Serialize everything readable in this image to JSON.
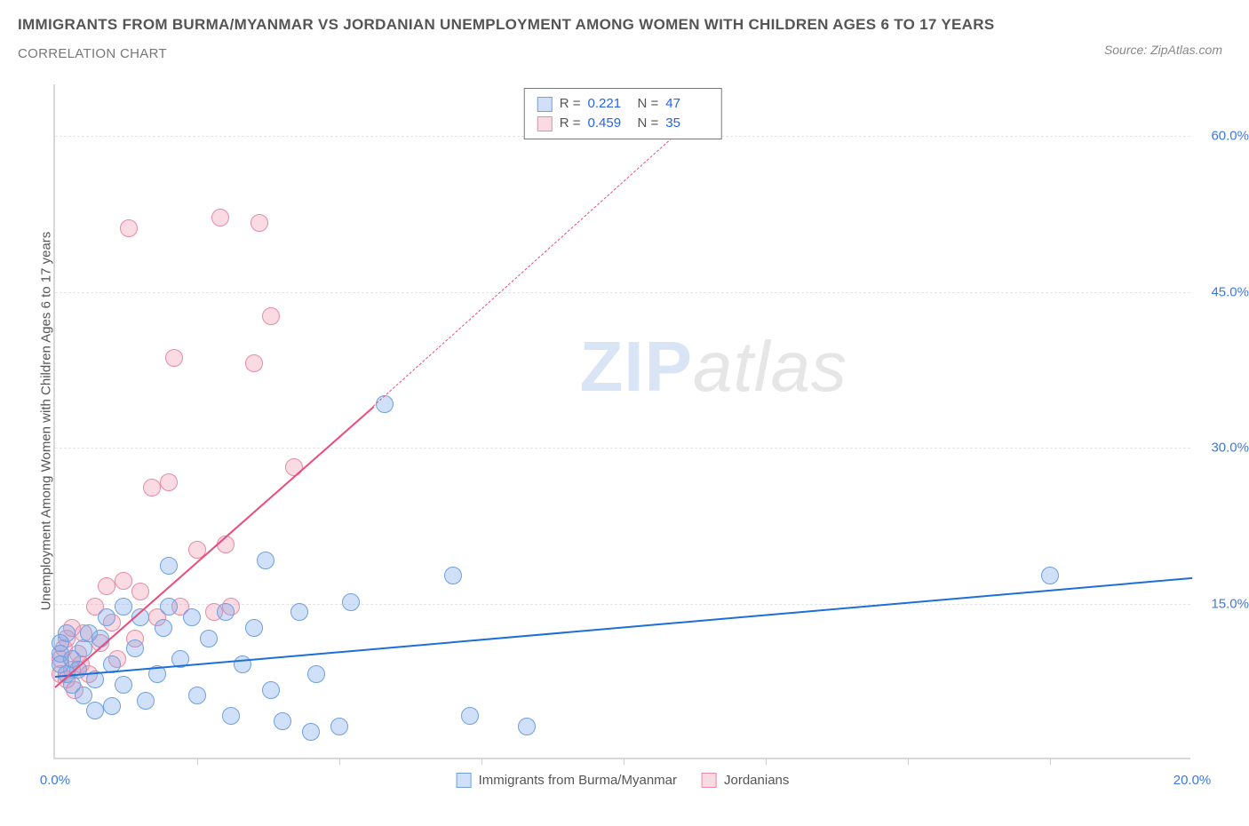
{
  "title_main": "IMMIGRANTS FROM BURMA/MYANMAR VS JORDANIAN UNEMPLOYMENT AMONG WOMEN WITH CHILDREN AGES 6 TO 17 YEARS",
  "title_sub": "CORRELATION CHART",
  "source_label": "Source: ZipAtlas.com",
  "y_axis_title": "Unemployment Among Women with Children Ages 6 to 17 years",
  "watermark_a": "ZIP",
  "watermark_b": "atlas",
  "chart": {
    "type": "scatter",
    "xlim": [
      0,
      20
    ],
    "ylim": [
      0,
      65
    ],
    "y_ticks": [
      15,
      30,
      45,
      60
    ],
    "y_tick_labels": [
      "15.0%",
      "30.0%",
      "45.0%",
      "60.0%"
    ],
    "x_major_ticks": [
      0,
      20
    ],
    "x_major_labels": [
      "0.0%",
      "20.0%"
    ],
    "x_minor_ticks": [
      2.5,
      5,
      7.5,
      10,
      12.5,
      15,
      17.5
    ],
    "tick_label_color": "#3b78e7",
    "grid_color": "#e5e5e5",
    "axis_color": "#d8d8d8",
    "background": "#ffffff",
    "series_a": {
      "label": "Immigrants from Burma/Myanmar",
      "fill": "rgba(120,165,235,0.35)",
      "stroke": "#6fa0e0",
      "trend_color": "#1d6fd8",
      "marker_radius": 10,
      "R": "0.221",
      "N": "47",
      "trend": {
        "x1": 0,
        "y1": 8.0,
        "x2": 20,
        "y2": 17.5
      },
      "points": [
        [
          0.1,
          10.0
        ],
        [
          0.1,
          9.0
        ],
        [
          0.1,
          11.0
        ],
        [
          0.2,
          8.0
        ],
        [
          0.2,
          12.0
        ],
        [
          0.3,
          7.0
        ],
        [
          0.3,
          9.5
        ],
        [
          0.4,
          8.5
        ],
        [
          0.5,
          6.0
        ],
        [
          0.5,
          10.5
        ],
        [
          0.6,
          12.0
        ],
        [
          0.7,
          4.5
        ],
        [
          0.7,
          7.5
        ],
        [
          0.8,
          11.5
        ],
        [
          0.9,
          13.5
        ],
        [
          1.0,
          5.0
        ],
        [
          1.0,
          9.0
        ],
        [
          1.2,
          14.5
        ],
        [
          1.2,
          7.0
        ],
        [
          1.4,
          10.5
        ],
        [
          1.5,
          13.5
        ],
        [
          1.6,
          5.5
        ],
        [
          1.8,
          8.0
        ],
        [
          1.9,
          12.5
        ],
        [
          2.0,
          14.5
        ],
        [
          2.0,
          18.5
        ],
        [
          2.2,
          9.5
        ],
        [
          2.4,
          13.5
        ],
        [
          2.5,
          6.0
        ],
        [
          2.7,
          11.5
        ],
        [
          3.0,
          14.0
        ],
        [
          3.1,
          4.0
        ],
        [
          3.3,
          9.0
        ],
        [
          3.5,
          12.5
        ],
        [
          3.7,
          19.0
        ],
        [
          3.8,
          6.5
        ],
        [
          4.0,
          3.5
        ],
        [
          4.3,
          14.0
        ],
        [
          4.5,
          2.5
        ],
        [
          4.6,
          8.0
        ],
        [
          5.0,
          3.0
        ],
        [
          5.2,
          15.0
        ],
        [
          5.8,
          34.0
        ],
        [
          7.0,
          17.5
        ],
        [
          7.3,
          4.0
        ],
        [
          8.3,
          3.0
        ],
        [
          17.5,
          17.5
        ]
      ]
    },
    "series_b": {
      "label": "Jordanians",
      "fill": "rgba(240,150,175,0.35)",
      "stroke": "#e58ca5",
      "trend_color": "#e94d7b",
      "marker_radius": 10,
      "R": "0.459",
      "N": "35",
      "trend_solid": {
        "x1": 0,
        "y1": 7.0,
        "x2": 5.6,
        "y2": 34.0
      },
      "trend_dashed": {
        "x1": 5.6,
        "y1": 34.0,
        "x2": 11.5,
        "y2": 63.0
      },
      "points": [
        [
          0.1,
          8.0
        ],
        [
          0.1,
          9.5
        ],
        [
          0.15,
          10.5
        ],
        [
          0.2,
          7.5
        ],
        [
          0.2,
          11.5
        ],
        [
          0.3,
          8.5
        ],
        [
          0.3,
          12.5
        ],
        [
          0.35,
          6.5
        ],
        [
          0.4,
          10.0
        ],
        [
          0.45,
          9.0
        ],
        [
          0.5,
          12.0
        ],
        [
          0.6,
          8.0
        ],
        [
          0.7,
          14.5
        ],
        [
          0.8,
          11.0
        ],
        [
          0.9,
          16.5
        ],
        [
          1.0,
          13.0
        ],
        [
          1.1,
          9.5
        ],
        [
          1.2,
          17.0
        ],
        [
          1.4,
          11.5
        ],
        [
          1.5,
          16.0
        ],
        [
          1.7,
          26.0
        ],
        [
          1.8,
          13.5
        ],
        [
          2.0,
          26.5
        ],
        [
          2.2,
          14.5
        ],
        [
          2.1,
          38.5
        ],
        [
          2.5,
          20.0
        ],
        [
          2.8,
          14.0
        ],
        [
          3.0,
          20.5
        ],
        [
          3.1,
          14.5
        ],
        [
          3.5,
          38.0
        ],
        [
          3.6,
          51.5
        ],
        [
          3.8,
          42.5
        ],
        [
          4.2,
          28.0
        ],
        [
          1.3,
          51.0
        ],
        [
          2.9,
          52.0
        ]
      ]
    }
  },
  "legend_top": {
    "r_label": "R =",
    "n_label": "N ="
  }
}
